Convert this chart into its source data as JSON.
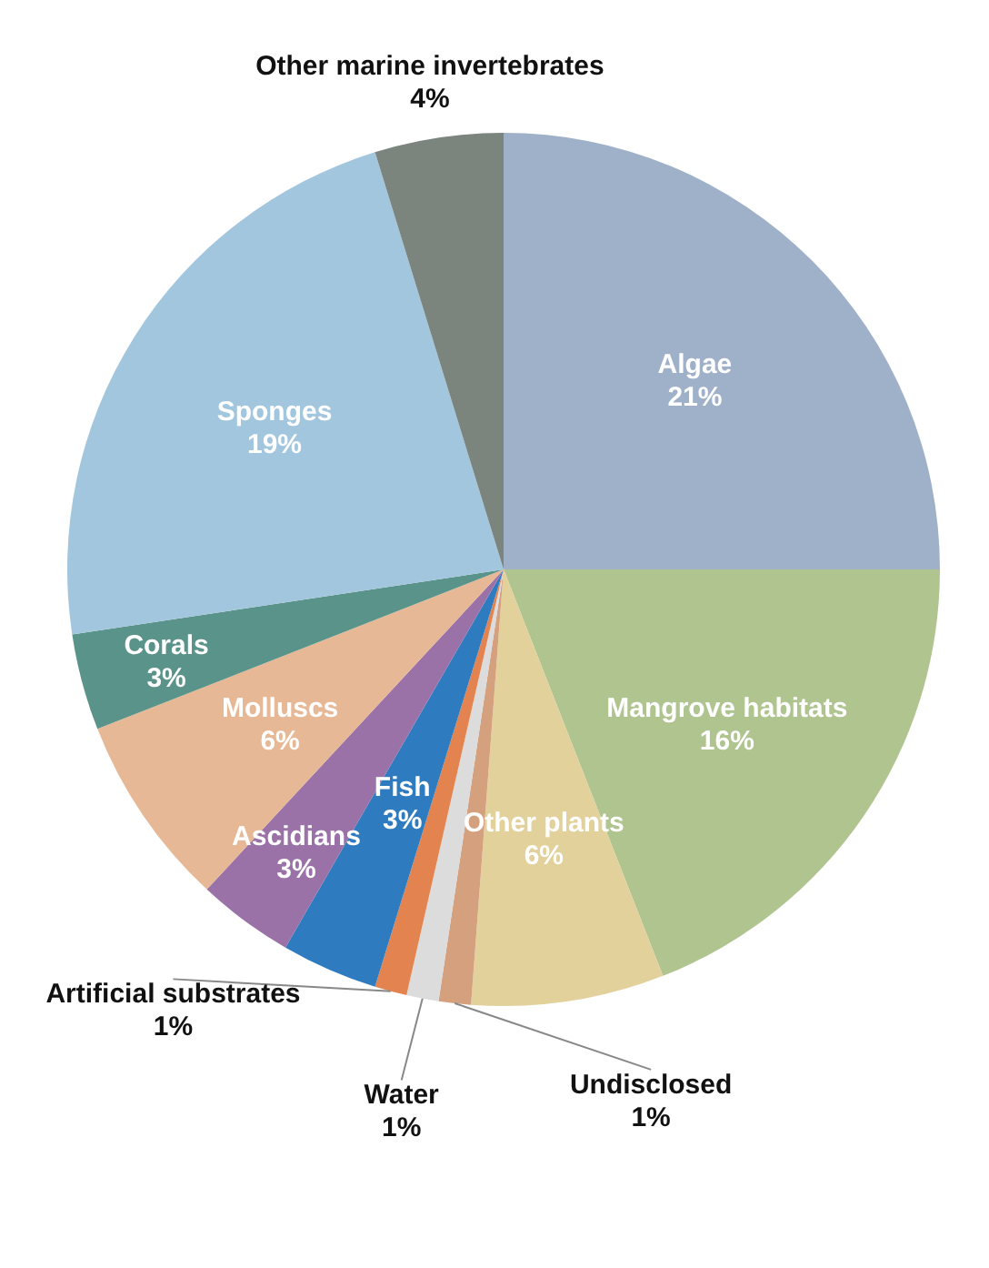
{
  "chart_data": {
    "type": "pie",
    "categories": [
      "Algae",
      "Mangrove habitats",
      "Other plants",
      "Undisclosed",
      "Water",
      "Artificial substrates",
      "Fish",
      "Ascidians",
      "Molluscs",
      "Corals",
      "Sponges",
      "Other marine invertebrates"
    ],
    "values": [
      21,
      16,
      6,
      1,
      1,
      1,
      3,
      3,
      6,
      3,
      19,
      4
    ],
    "value_labels": [
      "21%",
      "16%",
      "6%",
      "1%",
      "1%",
      "1%",
      "3%",
      "3%",
      "6%",
      "3%",
      "19%",
      "4%"
    ],
    "colors": [
      "#9fb1c8",
      "#afc48f",
      "#e2d19b",
      "#d4a07e",
      "#dcdcdc",
      "#e3834f",
      "#2e7bbf",
      "#9a72a8",
      "#e6b896",
      "#5a9389",
      "#a3c6df",
      "#7b847d"
    ]
  }
}
